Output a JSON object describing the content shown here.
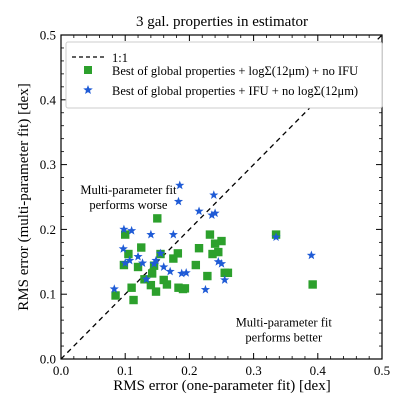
{
  "chart_data": {
    "type": "scatter",
    "title": "3 gal. properties in estimator",
    "xlabel": "RMS error (one-parameter fit) [dex]",
    "ylabel": "RMS error (multi-parameter fit) [dex]",
    "xlim": [
      0.0,
      0.5
    ],
    "ylim": [
      0.0,
      0.5
    ],
    "xticks": [
      "0.0",
      "0.1",
      "0.2",
      "0.3",
      "0.4",
      "0.5"
    ],
    "yticks": [
      "0.0",
      "0.1",
      "0.2",
      "0.3",
      "0.4",
      "0.5"
    ],
    "grid": false,
    "legend_position": "top-left",
    "reference_line": {
      "name": "1:1",
      "style": "dashed",
      "color": "#000000"
    },
    "series": [
      {
        "name": "Best of global properties + logΣ(12μm) + no IFU",
        "marker": "square",
        "color": "#2ca02c",
        "points": [
          [
            0.085,
            0.098
          ],
          [
            0.098,
            0.145
          ],
          [
            0.1,
            0.192
          ],
          [
            0.105,
            0.162
          ],
          [
            0.11,
            0.11
          ],
          [
            0.113,
            0.091
          ],
          [
            0.12,
            0.142
          ],
          [
            0.125,
            0.172
          ],
          [
            0.13,
            0.123
          ],
          [
            0.14,
            0.114
          ],
          [
            0.142,
            0.132
          ],
          [
            0.145,
            0.144
          ],
          [
            0.148,
            0.104
          ],
          [
            0.15,
            0.217
          ],
          [
            0.155,
            0.162
          ],
          [
            0.16,
            0.122
          ],
          [
            0.165,
            0.115
          ],
          [
            0.175,
            0.155
          ],
          [
            0.182,
            0.163
          ],
          [
            0.183,
            0.11
          ],
          [
            0.19,
            0.108
          ],
          [
            0.193,
            0.109
          ],
          [
            0.21,
            0.145
          ],
          [
            0.215,
            0.171
          ],
          [
            0.228,
            0.128
          ],
          [
            0.232,
            0.192
          ],
          [
            0.236,
            0.162
          ],
          [
            0.24,
            0.178
          ],
          [
            0.245,
            0.165
          ],
          [
            0.25,
            0.182
          ],
          [
            0.255,
            0.133
          ],
          [
            0.26,
            0.133
          ],
          [
            0.335,
            0.192
          ],
          [
            0.392,
            0.115
          ]
        ]
      },
      {
        "name": "Best of global properties + IFU + no logΣ(12μm)",
        "marker": "star",
        "color": "#1f5bd6",
        "points": [
          [
            0.083,
            0.108
          ],
          [
            0.097,
            0.17
          ],
          [
            0.098,
            0.2
          ],
          [
            0.1,
            0.148
          ],
          [
            0.107,
            0.152
          ],
          [
            0.11,
            0.198
          ],
          [
            0.12,
            0.158
          ],
          [
            0.127,
            0.148
          ],
          [
            0.133,
            0.123
          ],
          [
            0.14,
            0.192
          ],
          [
            0.145,
            0.147
          ],
          [
            0.148,
            0.152
          ],
          [
            0.155,
            0.163
          ],
          [
            0.16,
            0.142
          ],
          [
            0.17,
            0.135
          ],
          [
            0.175,
            0.192
          ],
          [
            0.183,
            0.243
          ],
          [
            0.185,
            0.268
          ],
          [
            0.188,
            0.132
          ],
          [
            0.195,
            0.133
          ],
          [
            0.215,
            0.228
          ],
          [
            0.225,
            0.107
          ],
          [
            0.235,
            0.222
          ],
          [
            0.238,
            0.253
          ],
          [
            0.24,
            0.225
          ],
          [
            0.245,
            0.15
          ],
          [
            0.25,
            0.147
          ],
          [
            0.255,
            0.122
          ],
          [
            0.335,
            0.188
          ],
          [
            0.39,
            0.16
          ]
        ]
      }
    ],
    "annotations": [
      {
        "lines": [
          "Multi-parameter fit",
          "performs worse"
        ],
        "x": 0.105,
        "y": 0.255
      },
      {
        "lines": [
          "Multi-parameter fit",
          "performs better"
        ],
        "x": 0.347,
        "y": 0.05
      }
    ]
  }
}
